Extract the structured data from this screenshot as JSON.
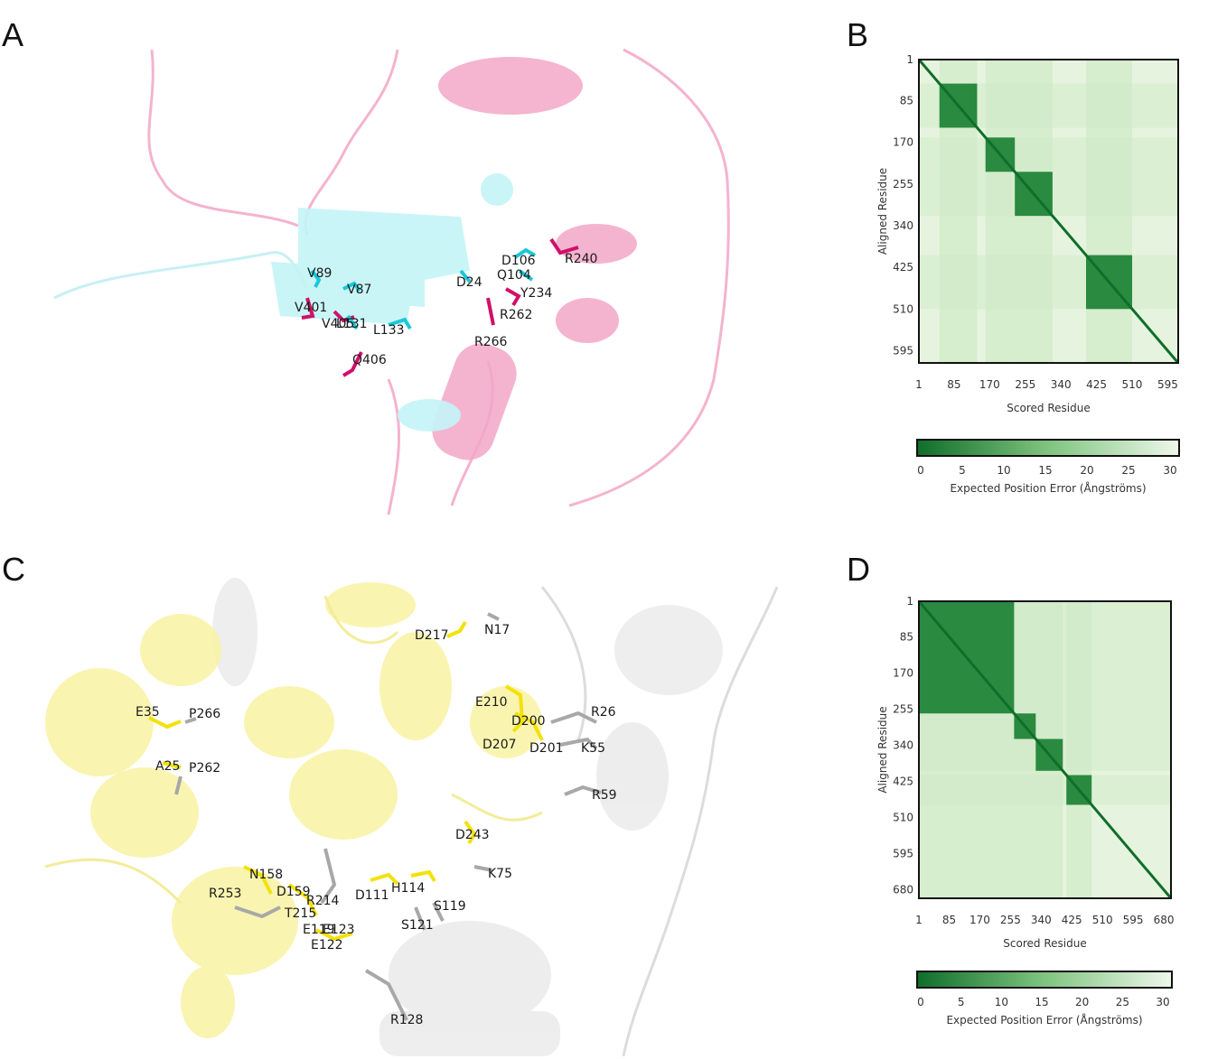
{
  "panels": {
    "A": {
      "letter": "A",
      "labels": [
        {
          "text": "V89",
          "color": "cyan"
        },
        {
          "text": "V87",
          "color": "cyan"
        },
        {
          "text": "V401",
          "color": "magenta"
        },
        {
          "text": "V405",
          "color": "magenta"
        },
        {
          "text": "L131",
          "color": "cyan"
        },
        {
          "text": "L133",
          "color": "cyan"
        },
        {
          "text": "Q406",
          "color": "magenta"
        },
        {
          "text": "D24",
          "color": "cyan"
        },
        {
          "text": "D106",
          "color": "cyan"
        },
        {
          "text": "Q104",
          "color": "cyan"
        },
        {
          "text": "R240",
          "color": "magenta"
        },
        {
          "text": "Y234",
          "color": "magenta"
        },
        {
          "text": "R262",
          "color": "magenta"
        },
        {
          "text": "R266",
          "color": "magenta"
        }
      ]
    },
    "B": {
      "letter": "B"
    },
    "C": {
      "letter": "C",
      "labels": [
        {
          "text": "D217",
          "color": "yellow"
        },
        {
          "text": "N17",
          "color": "grey"
        },
        {
          "text": "E210",
          "color": "yellow"
        },
        {
          "text": "D200",
          "color": "yellow"
        },
        {
          "text": "R26",
          "color": "grey"
        },
        {
          "text": "D207",
          "color": "yellow"
        },
        {
          "text": "D201",
          "color": "yellow"
        },
        {
          "text": "K55",
          "color": "grey"
        },
        {
          "text": "R59",
          "color": "grey"
        },
        {
          "text": "E35",
          "color": "yellow"
        },
        {
          "text": "P266",
          "color": "grey"
        },
        {
          "text": "A25",
          "color": "yellow"
        },
        {
          "text": "P262",
          "color": "grey"
        },
        {
          "text": "D243",
          "color": "yellow"
        },
        {
          "text": "K75",
          "color": "grey"
        },
        {
          "text": "N158",
          "color": "yellow"
        },
        {
          "text": "R253",
          "color": "grey"
        },
        {
          "text": "D159",
          "color": "yellow"
        },
        {
          "text": "R214",
          "color": "grey"
        },
        {
          "text": "D111",
          "color": "yellow"
        },
        {
          "text": "H114",
          "color": "yellow"
        },
        {
          "text": "S119",
          "color": "grey"
        },
        {
          "text": "T215",
          "color": "grey"
        },
        {
          "text": "E119",
          "color": "yellow"
        },
        {
          "text": "E123",
          "color": "yellow"
        },
        {
          "text": "S121",
          "color": "grey"
        },
        {
          "text": "E122",
          "color": "yellow"
        },
        {
          "text": "R128",
          "color": "grey"
        }
      ]
    },
    "D": {
      "letter": "D"
    }
  },
  "colors": {
    "cyan_ribbon": "#bff3f5",
    "pink_ribbon": "#f4a8c8",
    "cyan_stick": "#18c8d8",
    "magenta_stick": "#d0106a",
    "yellow_ribbon": "#f7f0a0",
    "grey_ribbon": "#e4e4e4",
    "yellow_stick": "#f2e20a",
    "grey_stick": "#a8a8a8",
    "pae_dark": "#0f6e2a",
    "pae_light": "#eef8ea"
  },
  "chart_data": [
    {
      "type": "heatmap",
      "panel": "B",
      "xlabel": "Scored Residue",
      "ylabel": "Aligned Residue",
      "xticks": [
        "1",
        "85",
        "170",
        "255",
        "340",
        "425",
        "510",
        "595"
      ],
      "yticks": [
        "1",
        "85",
        "170",
        "255",
        "340",
        "425",
        "510",
        "595"
      ],
      "range": [
        1,
        620
      ],
      "confident_blocks": [
        [
          50,
          140
        ],
        [
          160,
          230
        ],
        [
          230,
          320
        ],
        [
          400,
          510
        ]
      ],
      "colorbar": {
        "ticks": [
          "0",
          "5",
          "10",
          "15",
          "20",
          "25",
          "30"
        ],
        "min": 0,
        "max": 30,
        "label": "Expected Position Error (Ångströms)"
      }
    },
    {
      "type": "heatmap",
      "panel": "D",
      "xlabel": "Scored Residue",
      "ylabel": "Aligned Residue",
      "xticks": [
        "1",
        "85",
        "170",
        "255",
        "340",
        "425",
        "510",
        "595",
        "680"
      ],
      "yticks": [
        "1",
        "85",
        "170",
        "255",
        "340",
        "425",
        "510",
        "595",
        "680"
      ],
      "range": [
        1,
        700
      ],
      "confident_blocks": [
        [
          1,
          265
        ],
        [
          265,
          325
        ],
        [
          325,
          400
        ],
        [
          410,
          480
        ]
      ],
      "colorbar": {
        "ticks": [
          "0",
          "5",
          "10",
          "15",
          "20",
          "25",
          "30"
        ],
        "min": 0,
        "max": 30,
        "label": "Expected Position Error (Ångströms)"
      }
    }
  ]
}
